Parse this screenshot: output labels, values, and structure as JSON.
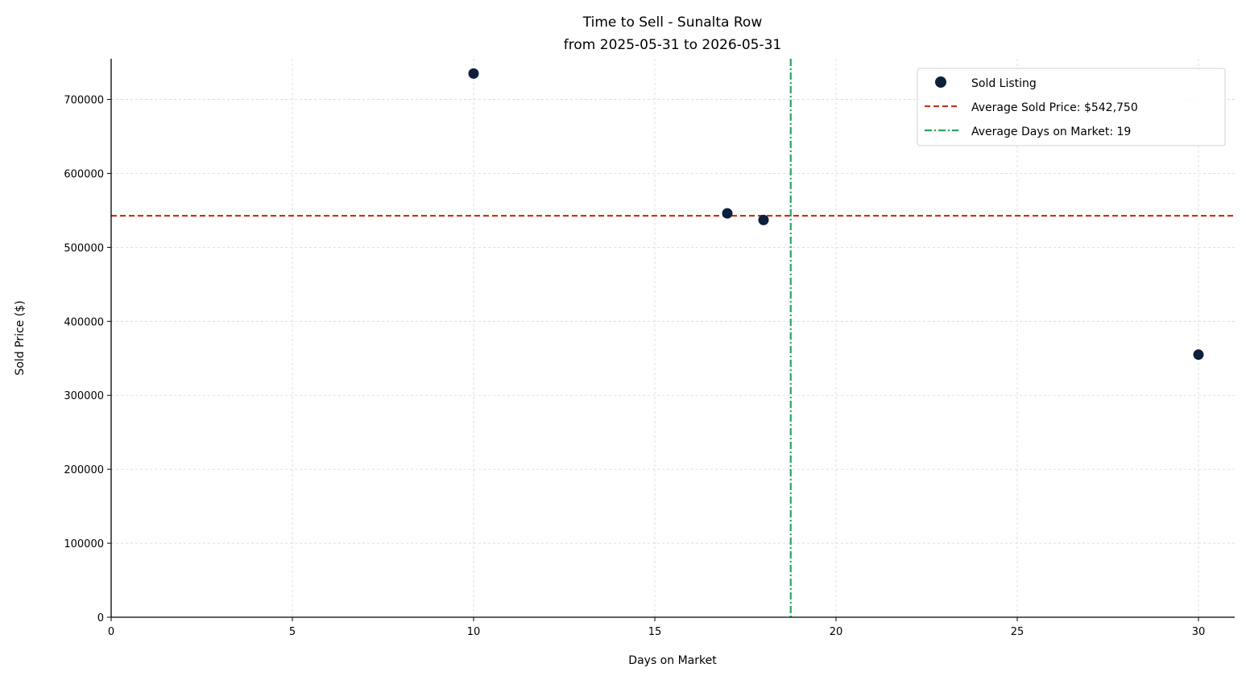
{
  "chart_data": {
    "type": "scatter",
    "title": "Time to Sell - Sunalta Row",
    "subtitle": "from 2025-05-31 to 2026-05-31",
    "xlabel": "Days on Market",
    "ylabel": "Sold Price ($)",
    "xlim": [
      0,
      31
    ],
    "ylim": [
      0,
      755000
    ],
    "x_ticks": [
      0,
      5,
      10,
      15,
      20,
      25,
      30
    ],
    "y_ticks": [
      0,
      100000,
      200000,
      300000,
      400000,
      500000,
      600000,
      700000
    ],
    "grid": true,
    "legend_position": "top-right",
    "series": [
      {
        "name": "Sold Listing",
        "color": "#0d1f3c",
        "points": [
          {
            "x": 10,
            "y": 735000
          },
          {
            "x": 17,
            "y": 546000
          },
          {
            "x": 18,
            "y": 537000
          },
          {
            "x": 30,
            "y": 355000
          }
        ]
      }
    ],
    "reference_lines": [
      {
        "orientation": "horizontal",
        "value": 542750,
        "label": "Average Sold Price: $542,750",
        "color": "#c0391b",
        "style": "dashed"
      },
      {
        "orientation": "vertical",
        "value": 18.75,
        "label": "Average Days on Market: 19",
        "color": "#27a55d",
        "style": "dashdot"
      }
    ]
  }
}
